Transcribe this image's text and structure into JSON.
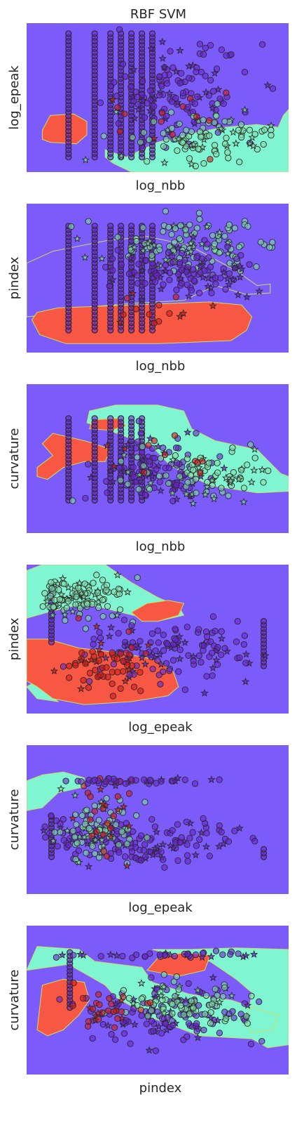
{
  "title": "RBF SVM",
  "colors": {
    "background_region": "#7b5cfa",
    "teal_region": "#80f5d2",
    "red_region": "#f85743",
    "teal_class": "#7de0a8",
    "purple_class": "#6a22d6",
    "red_class": "#d81818",
    "marker_edge": "#2a2a2a",
    "text": "#262626"
  },
  "chart_data": [
    {
      "type": "scatter",
      "xlabel": "log_nbb",
      "ylabel": "log_epeak",
      "grid": false,
      "regions": [
        {
          "class": "teal",
          "polygon": [
            [
              0.3,
              0.15
            ],
            [
              0.38,
              0.1
            ],
            [
              0.5,
              0.2
            ],
            [
              0.66,
              0.27
            ],
            [
              0.75,
              0.3
            ],
            [
              0.88,
              0.32
            ],
            [
              0.96,
              0.3
            ],
            [
              0.98,
              0.38
            ],
            [
              1.0,
              0.42
            ],
            [
              1.0,
              0.0
            ],
            [
              0.4,
              0.0
            ],
            [
              0.33,
              0.06
            ],
            [
              0.3,
              0.1
            ]
          ]
        },
        {
          "class": "red",
          "polygon": [
            [
              0.06,
              0.28
            ],
            [
              0.09,
              0.38
            ],
            [
              0.18,
              0.39
            ],
            [
              0.23,
              0.34
            ],
            [
              0.23,
              0.25
            ],
            [
              0.19,
              0.19
            ],
            [
              0.09,
              0.2
            ],
            [
              0.06,
              0.22
            ]
          ]
        }
      ],
      "columns": [
        0.16,
        0.26,
        0.32,
        0.36,
        0.4,
        0.44,
        0.48
      ],
      "column_ranges": [
        [
          0.1,
          0.93
        ],
        [
          0.1,
          0.93
        ],
        [
          0.1,
          0.93
        ],
        [
          0.1,
          0.93
        ],
        [
          0.1,
          0.93
        ],
        [
          0.1,
          0.93
        ],
        [
          0.1,
          0.93
        ]
      ],
      "clusters": [
        {
          "class": "purple",
          "cx": 0.57,
          "cy": 0.55,
          "sx": 0.14,
          "sy": 0.16,
          "n": 130
        },
        {
          "class": "teal",
          "cx": 0.7,
          "cy": 0.22,
          "sx": 0.14,
          "sy": 0.09,
          "n": 110
        },
        {
          "class": "red",
          "cx": 0.55,
          "cy": 0.3,
          "sx": 0.12,
          "sy": 0.1,
          "n": 14
        }
      ]
    },
    {
      "type": "scatter",
      "xlabel": "log_nbb",
      "ylabel": "pindex",
      "grid": false,
      "regions": [
        {
          "class": "purple",
          "polygon": [
            [
              0.0,
              0.6
            ],
            [
              0.1,
              0.68
            ],
            [
              0.3,
              0.75
            ],
            [
              0.46,
              0.78
            ],
            [
              0.62,
              0.72
            ],
            [
              0.8,
              0.55
            ],
            [
              0.88,
              0.45
            ],
            [
              0.93,
              0.46
            ],
            [
              0.93,
              0.4
            ],
            [
              0.84,
              0.39
            ],
            [
              0.72,
              0.45
            ],
            [
              0.6,
              0.35
            ],
            [
              0.4,
              0.33
            ],
            [
              0.2,
              0.3
            ],
            [
              0.06,
              0.25
            ],
            [
              0.0,
              0.24
            ]
          ]
        },
        {
          "class": "red",
          "polygon": [
            [
              0.02,
              0.22
            ],
            [
              0.05,
              0.12
            ],
            [
              0.15,
              0.06
            ],
            [
              0.5,
              0.06
            ],
            [
              0.78,
              0.08
            ],
            [
              0.84,
              0.15
            ],
            [
              0.86,
              0.24
            ],
            [
              0.82,
              0.32
            ],
            [
              0.7,
              0.34
            ],
            [
              0.4,
              0.32
            ],
            [
              0.12,
              0.3
            ],
            [
              0.04,
              0.27
            ]
          ]
        }
      ],
      "columns": [
        0.16,
        0.26,
        0.32,
        0.36,
        0.4,
        0.44,
        0.48
      ],
      "column_ranges": [
        [
          0.15,
          0.85
        ],
        [
          0.15,
          0.85
        ],
        [
          0.15,
          0.85
        ],
        [
          0.15,
          0.85
        ],
        [
          0.15,
          0.85
        ],
        [
          0.15,
          0.85
        ],
        [
          0.15,
          0.85
        ]
      ],
      "clusters": [
        {
          "class": "teal",
          "cx": 0.62,
          "cy": 0.72,
          "sx": 0.15,
          "sy": 0.09,
          "n": 120
        },
        {
          "class": "purple",
          "cx": 0.6,
          "cy": 0.52,
          "sx": 0.15,
          "sy": 0.1,
          "n": 120
        },
        {
          "class": "red",
          "cx": 0.52,
          "cy": 0.28,
          "sx": 0.12,
          "sy": 0.07,
          "n": 14
        }
      ]
    },
    {
      "type": "scatter",
      "xlabel": "log_nbb",
      "ylabel": "curvature",
      "grid": false,
      "regions": [
        {
          "class": "teal",
          "polygon": [
            [
              0.23,
              0.74
            ],
            [
              0.24,
              0.82
            ],
            [
              0.34,
              0.86
            ],
            [
              0.5,
              0.86
            ],
            [
              0.6,
              0.82
            ],
            [
              0.63,
              0.7
            ],
            [
              0.72,
              0.62
            ],
            [
              0.88,
              0.56
            ],
            [
              0.97,
              0.4
            ],
            [
              1.0,
              0.38
            ],
            [
              1.0,
              0.28
            ],
            [
              0.88,
              0.27
            ],
            [
              0.7,
              0.32
            ],
            [
              0.55,
              0.45
            ],
            [
              0.48,
              0.58
            ],
            [
              0.36,
              0.66
            ],
            [
              0.3,
              0.7
            ]
          ]
        },
        {
          "class": "red",
          "polygon": [
            [
              0.04,
              0.44
            ],
            [
              0.1,
              0.52
            ],
            [
              0.06,
              0.6
            ],
            [
              0.1,
              0.67
            ],
            [
              0.22,
              0.62
            ],
            [
              0.26,
              0.6
            ],
            [
              0.32,
              0.56
            ],
            [
              0.3,
              0.48
            ],
            [
              0.22,
              0.48
            ],
            [
              0.14,
              0.44
            ],
            [
              0.08,
              0.36
            ],
            [
              0.04,
              0.38
            ]
          ]
        },
        {
          "class": "red",
          "polygon": [
            [
              0.24,
              0.7
            ],
            [
              0.25,
              0.76
            ],
            [
              0.35,
              0.77
            ],
            [
              0.38,
              0.72
            ],
            [
              0.32,
              0.69
            ]
          ]
        }
      ],
      "columns": [
        0.16,
        0.26,
        0.32,
        0.36,
        0.4,
        0.44
      ],
      "column_ranges": [
        [
          0.22,
          0.77
        ],
        [
          0.22,
          0.77
        ],
        [
          0.22,
          0.77
        ],
        [
          0.22,
          0.77
        ],
        [
          0.22,
          0.77
        ],
        [
          0.22,
          0.77
        ]
      ],
      "clusters": [
        {
          "class": "purple",
          "cx": 0.52,
          "cy": 0.42,
          "sx": 0.1,
          "sy": 0.12,
          "n": 100
        },
        {
          "class": "teal",
          "cx": 0.66,
          "cy": 0.38,
          "sx": 0.15,
          "sy": 0.09,
          "n": 90
        },
        {
          "class": "red",
          "cx": 0.48,
          "cy": 0.48,
          "sx": 0.1,
          "sy": 0.1,
          "n": 12
        }
      ]
    },
    {
      "type": "scatter",
      "xlabel": "log_epeak",
      "ylabel": "pindex",
      "grid": false,
      "regions": [
        {
          "class": "teal",
          "polygon": [
            [
              0.0,
              0.96
            ],
            [
              0.06,
              1.0
            ],
            [
              0.3,
              1.0
            ],
            [
              0.4,
              0.88
            ],
            [
              0.5,
              0.78
            ],
            [
              0.58,
              0.72
            ],
            [
              0.6,
              0.66
            ],
            [
              0.5,
              0.62
            ],
            [
              0.36,
              0.68
            ],
            [
              0.22,
              0.74
            ],
            [
              0.08,
              0.68
            ],
            [
              0.0,
              0.64
            ]
          ]
        },
        {
          "class": "teal",
          "polygon": [
            [
              0.0,
              0.18
            ],
            [
              0.04,
              0.1
            ],
            [
              0.12,
              0.08
            ],
            [
              0.08,
              0.14
            ],
            [
              0.04,
              0.22
            ]
          ]
        },
        {
          "class": "red",
          "polygon": [
            [
              0.0,
              0.5
            ],
            [
              0.08,
              0.5
            ],
            [
              0.2,
              0.44
            ],
            [
              0.3,
              0.42
            ],
            [
              0.38,
              0.4
            ],
            [
              0.5,
              0.36
            ],
            [
              0.56,
              0.28
            ],
            [
              0.58,
              0.18
            ],
            [
              0.54,
              0.12
            ],
            [
              0.4,
              0.08
            ],
            [
              0.22,
              0.06
            ],
            [
              0.1,
              0.1
            ],
            [
              0.04,
              0.18
            ],
            [
              0.0,
              0.22
            ]
          ]
        },
        {
          "class": "red",
          "polygon": [
            [
              0.4,
              0.68
            ],
            [
              0.46,
              0.74
            ],
            [
              0.54,
              0.76
            ],
            [
              0.6,
              0.74
            ],
            [
              0.58,
              0.66
            ],
            [
              0.5,
              0.62
            ],
            [
              0.44,
              0.62
            ]
          ]
        }
      ],
      "columns": [
        0.095,
        0.905
      ],
      "column_ranges": [
        [
          0.48,
          0.85
        ],
        [
          0.32,
          0.62
        ]
      ],
      "clusters": [
        {
          "class": "teal",
          "cx": 0.2,
          "cy": 0.78,
          "sx": 0.09,
          "sy": 0.07,
          "n": 120
        },
        {
          "class": "purple",
          "cx": 0.58,
          "cy": 0.42,
          "sx": 0.15,
          "sy": 0.1,
          "n": 130
        },
        {
          "class": "red",
          "cx": 0.3,
          "cy": 0.34,
          "sx": 0.08,
          "sy": 0.09,
          "n": 60
        }
      ]
    },
    {
      "type": "scatter",
      "xlabel": "log_epeak",
      "ylabel": "curvature",
      "grid": false,
      "regions": [
        {
          "class": "teal",
          "polygon": [
            [
              0.0,
              0.76
            ],
            [
              0.06,
              0.8
            ],
            [
              0.14,
              0.82
            ],
            [
              0.22,
              0.78
            ],
            [
              0.22,
              0.72
            ],
            [
              0.12,
              0.68
            ],
            [
              0.06,
              0.58
            ],
            [
              0.0,
              0.56
            ]
          ]
        }
      ],
      "columns": [
        0.095,
        0.905
      ],
      "column_ranges": [
        [
          0.25,
          0.52
        ],
        [
          0.25,
          0.3
        ]
      ],
      "clusters": [
        {
          "class": "purple",
          "cx": 0.4,
          "cy": 0.35,
          "sx": 0.18,
          "sy": 0.08,
          "n": 150
        },
        {
          "class": "teal",
          "cx": 0.25,
          "cy": 0.42,
          "sx": 0.08,
          "sy": 0.1,
          "n": 80
        },
        {
          "class": "red",
          "cx": 0.32,
          "cy": 0.55,
          "sx": 0.06,
          "sy": 0.14,
          "n": 30
        },
        {
          "class": "purple",
          "cx": 0.4,
          "cy": 0.76,
          "sx": 0.18,
          "sy": 0.01,
          "n": 40
        }
      ]
    },
    {
      "type": "scatter",
      "xlabel": "pindex",
      "ylabel": "curvature",
      "grid": false,
      "regions": [
        {
          "class": "teal",
          "polygon": [
            [
              0.0,
              0.7
            ],
            [
              0.04,
              0.86
            ],
            [
              0.2,
              0.84
            ],
            [
              0.26,
              0.76
            ],
            [
              0.44,
              0.72
            ],
            [
              0.48,
              0.62
            ],
            [
              0.62,
              0.54
            ],
            [
              0.78,
              0.5
            ],
            [
              0.92,
              0.42
            ],
            [
              0.96,
              0.4
            ],
            [
              0.94,
              0.3
            ],
            [
              0.86,
              0.28
            ],
            [
              0.84,
              0.34
            ],
            [
              0.86,
              0.55
            ],
            [
              0.8,
              0.64
            ],
            [
              0.7,
              0.76
            ],
            [
              0.6,
              0.78
            ],
            [
              0.48,
              0.84
            ],
            [
              0.62,
              0.84
            ],
            [
              0.8,
              0.85
            ],
            [
              1.0,
              0.84
            ],
            [
              1.0,
              0.2
            ],
            [
              0.92,
              0.18
            ],
            [
              0.86,
              0.24
            ],
            [
              0.66,
              0.26
            ],
            [
              0.48,
              0.38
            ],
            [
              0.34,
              0.52
            ],
            [
              0.3,
              0.6
            ],
            [
              0.22,
              0.68
            ],
            [
              0.16,
              0.74
            ],
            [
              0.08,
              0.72
            ]
          ]
        },
        {
          "class": "red",
          "polygon": [
            [
              0.04,
              0.3
            ],
            [
              0.06,
              0.6
            ],
            [
              0.14,
              0.64
            ],
            [
              0.22,
              0.62
            ],
            [
              0.24,
              0.5
            ],
            [
              0.2,
              0.4
            ],
            [
              0.14,
              0.3
            ],
            [
              0.08,
              0.26
            ]
          ]
        },
        {
          "class": "red",
          "polygon": [
            [
              0.46,
              0.7
            ],
            [
              0.5,
              0.78
            ],
            [
              0.6,
              0.82
            ],
            [
              0.7,
              0.8
            ],
            [
              0.68,
              0.7
            ],
            [
              0.58,
              0.66
            ]
          ]
        }
      ],
      "columns": [
        0.165
      ],
      "column_ranges": [
        [
          0.45,
          0.82
        ]
      ],
      "clusters": [
        {
          "class": "purple",
          "cx": 0.55,
          "cy": 0.4,
          "sx": 0.16,
          "sy": 0.1,
          "n": 140
        },
        {
          "class": "teal",
          "cx": 0.6,
          "cy": 0.48,
          "sx": 0.14,
          "sy": 0.08,
          "n": 70
        },
        {
          "class": "red",
          "cx": 0.32,
          "cy": 0.44,
          "sx": 0.1,
          "sy": 0.08,
          "n": 30
        },
        {
          "class": "purple",
          "cx": 0.56,
          "cy": 0.8,
          "sx": 0.16,
          "sy": 0.01,
          "n": 40
        }
      ]
    }
  ]
}
